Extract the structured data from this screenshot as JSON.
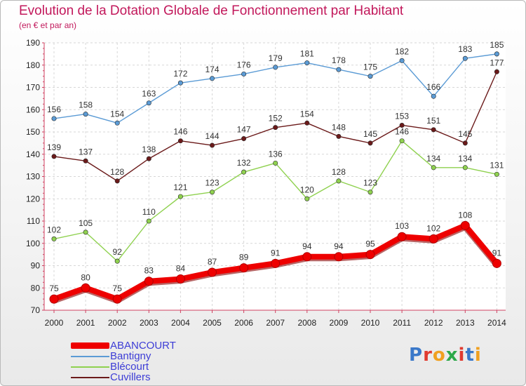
{
  "title": "Evolution de la Dotation Globale de Fonctionnement par Habitant",
  "subtitle": "(en € et par an)",
  "brand": {
    "text": "Proxiti",
    "colors": [
      "#3a78c9",
      "#e03a2f",
      "#f0a020",
      "#2da84a",
      "#e03a2f",
      "#3a78c9",
      "#f0a020"
    ]
  },
  "chart_data": {
    "type": "line",
    "title": "Evolution de la Dotation Globale de Fonctionnement par Habitant",
    "subtitle": "(en € et par an)",
    "x": [
      "2000",
      "2001",
      "2002",
      "2003",
      "2004",
      "2005",
      "2006",
      "2007",
      "2008",
      "2009",
      "2010",
      "2011",
      "2012",
      "2013",
      "2014"
    ],
    "ylim": [
      70,
      190
    ],
    "yticks": [
      70,
      80,
      90,
      100,
      110,
      120,
      130,
      140,
      150,
      160,
      170,
      180,
      190
    ],
    "grid": true,
    "series": [
      {
        "name": "ABANCOURT",
        "color": "#ee0000",
        "values": [
          75,
          80,
          75,
          83,
          84,
          87,
          89,
          91,
          94,
          94,
          95,
          103,
          102,
          108,
          91
        ]
      },
      {
        "name": "Bantigny",
        "color": "#5b9bd5",
        "values": [
          156,
          158,
          154,
          163,
          172,
          174,
          176,
          179,
          181,
          178,
          175,
          182,
          166,
          183,
          185
        ]
      },
      {
        "name": "Blécourt",
        "color": "#8fd14f",
        "values": [
          102,
          105,
          92,
          110,
          121,
          123,
          132,
          136,
          120,
          128,
          123,
          146,
          134,
          134,
          131
        ]
      },
      {
        "name": "Cuvillers",
        "color": "#6b1a1a",
        "values": [
          139,
          137,
          128,
          138,
          146,
          144,
          147,
          152,
          154,
          148,
          145,
          153,
          151,
          145,
          177
        ]
      }
    ]
  }
}
